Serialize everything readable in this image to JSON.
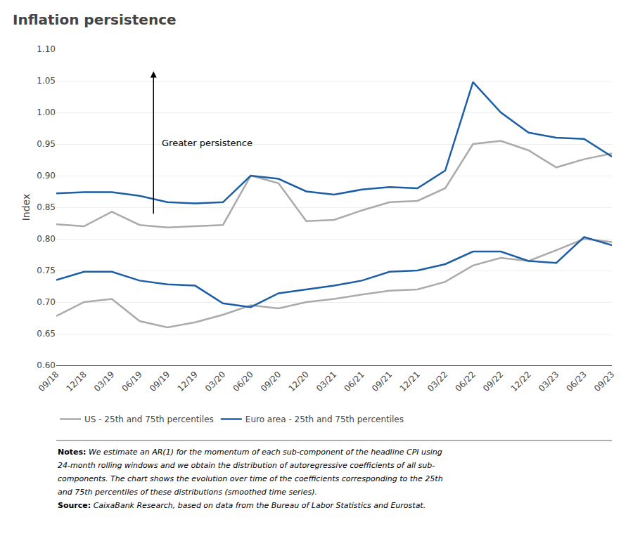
{
  "chart_data": {
    "type": "line",
    "title": "Inflation persistence",
    "y_label": "Index",
    "categories": [
      "09/18",
      "12/18",
      "03/19",
      "06/19",
      "09/19",
      "12/19",
      "03/20",
      "06/20",
      "09/20",
      "12/20",
      "03/21",
      "06/21",
      "09/21",
      "12/21",
      "03/22",
      "06/22",
      "09/22",
      "12/22",
      "03/23",
      "06/23",
      "09/23"
    ],
    "series": [
      {
        "name": "US - 25th and 75th percentiles",
        "color": "#aaaaaa",
        "values": [
          0.823,
          0.82,
          0.843,
          0.822,
          0.818,
          0.82,
          0.822,
          0.9,
          0.888,
          0.828,
          0.83,
          0.845,
          0.858,
          0.86,
          0.88,
          0.95,
          0.955,
          0.94,
          0.913,
          0.926,
          0.935
        ]
      },
      {
        "name": "US - 25th and 75th percentiles",
        "color": "#aaaaaa",
        "values": [
          0.678,
          0.7,
          0.705,
          0.67,
          0.66,
          0.668,
          0.68,
          0.695,
          0.69,
          0.7,
          0.705,
          0.712,
          0.718,
          0.72,
          0.732,
          0.758,
          0.77,
          0.765,
          0.782,
          0.8,
          0.795
        ]
      },
      {
        "name": "Euro area - 25th and 75th percentiles",
        "color": "#1b5ea6",
        "values": [
          0.872,
          0.874,
          0.874,
          0.868,
          0.858,
          0.856,
          0.858,
          0.9,
          0.895,
          0.875,
          0.87,
          0.878,
          0.882,
          0.88,
          0.908,
          1.048,
          1.0,
          0.968,
          0.96,
          0.958,
          0.93
        ]
      },
      {
        "name": "Euro area - 25th and 75th percentiles",
        "color": "#1b5ea6",
        "values": [
          0.735,
          0.748,
          0.748,
          0.734,
          0.728,
          0.726,
          0.698,
          0.692,
          0.714,
          0.72,
          0.726,
          0.734,
          0.748,
          0.75,
          0.76,
          0.78,
          0.78,
          0.765,
          0.762,
          0.803,
          0.79
        ]
      }
    ],
    "ylim": [
      0.6,
      1.1
    ],
    "yticks": [
      {
        "value": 0.6,
        "label": "0.60"
      },
      {
        "value": 0.65,
        "label": "0.65"
      },
      {
        "value": 0.7,
        "label": "0.70"
      },
      {
        "value": 0.75,
        "label": "0.75"
      },
      {
        "value": 0.8,
        "label": "0.80"
      },
      {
        "value": 0.85,
        "label": "0.85"
      },
      {
        "value": 0.9,
        "label": "0.90"
      },
      {
        "value": 0.95,
        "label": "0.95"
      },
      {
        "value": 1.0,
        "label": "1.00"
      },
      {
        "value": 1.05,
        "label": "1.05"
      },
      {
        "value": 1.1,
        "label": "1.10"
      }
    ],
    "grid": true,
    "legend": "bottom",
    "annotations": [
      {
        "text": "Greater persistence",
        "y_start": 0.838,
        "y_end": 1.065
      }
    ],
    "notes": {
      "label": "Notes:",
      "lines": [
        "We estimate an AR(1) for the momentum of each sub-component of the headline CPI using",
        "24-month rolling windows and we obtain the distribution of autoregressive coefficients of all sub-",
        "components. The chart shows the evolution over time of the coefficients corresponding to the 25th",
        "and 75th percentiles of these distributions (smoothed time series)."
      ]
    },
    "source": {
      "label": "Source:",
      "text": "CaixaBank Research, based on data from the Bureau of Labor Statistics and Eurostat."
    }
  }
}
